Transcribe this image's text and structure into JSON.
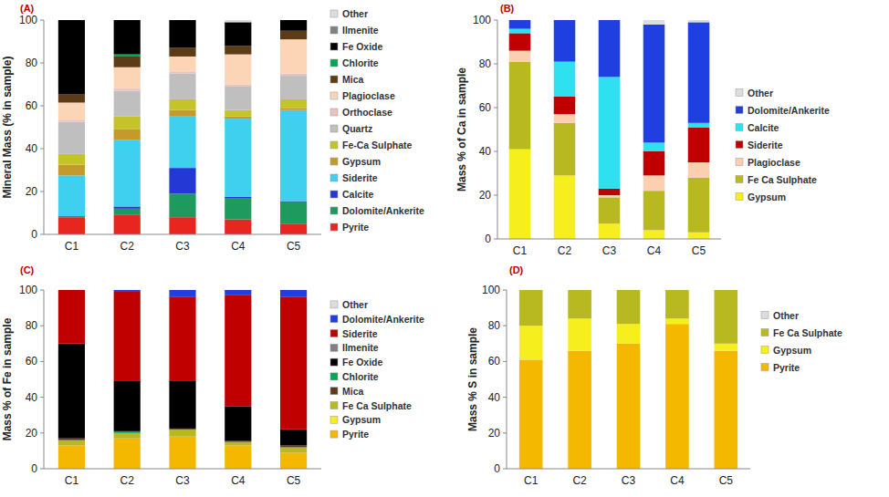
{
  "chart_data": [
    {
      "type": "bar",
      "title": "(A)",
      "y_label": "Mineral Mass  (% in sample)",
      "stacked": true,
      "grid": false,
      "legend": "right",
      "categories": [
        "C1",
        "C2",
        "C3",
        "C4",
        "C5"
      ],
      "ylim": [
        0,
        100
      ],
      "yticks": [
        0,
        20,
        40,
        60,
        80,
        100
      ],
      "series": [
        {
          "name": "Pyrite",
          "color": "#e8261f",
          "values": [
            8,
            9,
            8,
            7,
            5
          ]
        },
        {
          "name": "Dolomite/Ankerite",
          "color": "#1f9a5e",
          "values": [
            0.5,
            3,
            11,
            10,
            10
          ]
        },
        {
          "name": "Calcite",
          "color": "#2438d6",
          "values": [
            0,
            1,
            12,
            0.5,
            0.5
          ]
        },
        {
          "name": "Siderite",
          "color": "#3fd0f0",
          "values": [
            19,
            31,
            24,
            36.5,
            42.5
          ]
        },
        {
          "name": "Gypsum",
          "color": "#c49a2c",
          "values": [
            5,
            5,
            3,
            1,
            1
          ]
        },
        {
          "name": "Fe-Ca Sulphate",
          "color": "#c4c42a",
          "values": [
            5,
            6,
            5,
            3,
            4
          ]
        },
        {
          "name": "Quartz",
          "color": "#bfbfbf",
          "values": [
            15,
            12,
            12,
            11,
            11
          ]
        },
        {
          "name": "Orthoclase",
          "color": "#e8c2c2",
          "values": [
            1,
            1,
            1,
            1,
            1
          ]
        },
        {
          "name": "Plagioclase",
          "color": "#fbd5b5",
          "values": [
            8,
            10,
            7,
            14,
            16
          ]
        },
        {
          "name": "Mica",
          "color": "#5c3b17",
          "values": [
            4,
            5,
            4,
            4,
            4
          ]
        },
        {
          "name": "Chlorite",
          "color": "#00a651",
          "values": [
            0,
            1,
            0,
            0,
            0
          ]
        },
        {
          "name": "Fe Oxide",
          "color": "#000000",
          "values": [
            34.5,
            16,
            13,
            11,
            5
          ]
        },
        {
          "name": "Ilmenite",
          "color": "#808080",
          "values": [
            0,
            0,
            0,
            0,
            0
          ]
        },
        {
          "name": "Other",
          "color": "#dddddd",
          "values": [
            0,
            0,
            0,
            1,
            0
          ]
        }
      ]
    },
    {
      "type": "bar",
      "title": "(B)",
      "y_label": "Mass % of Ca in sample",
      "stacked": true,
      "grid": false,
      "legend": "right",
      "categories": [
        "C1",
        "C2",
        "C3",
        "C4",
        "C5"
      ],
      "ylim": [
        0,
        100
      ],
      "yticks": [
        0,
        20,
        40,
        60,
        80,
        100
      ],
      "series": [
        {
          "name": "Gypsum",
          "color": "#f7ee1e",
          "values": [
            41,
            29,
            7,
            4,
            3
          ]
        },
        {
          "name": "Fe Ca Sulphate",
          "color": "#b8b820",
          "values": [
            40,
            24,
            12,
            18,
            25
          ]
        },
        {
          "name": "Plagioclase",
          "color": "#fbcfb0",
          "values": [
            5,
            4,
            1,
            7,
            7
          ]
        },
        {
          "name": "Siderite",
          "color": "#c00000",
          "values": [
            8,
            8,
            3,
            11,
            16
          ]
        },
        {
          "name": "Calcite",
          "color": "#2fe0f0",
          "values": [
            2,
            16,
            51,
            4,
            2
          ]
        },
        {
          "name": "Dolomite/Ankerite",
          "color": "#1f3fe0",
          "values": [
            4,
            19,
            26,
            54,
            46
          ]
        },
        {
          "name": "Other",
          "color": "#dddddd",
          "values": [
            0,
            0,
            0,
            2,
            1
          ]
        }
      ]
    },
    {
      "type": "bar",
      "title": "(C)",
      "y_label": "Mass % of Fe in sample",
      "stacked": true,
      "grid": false,
      "legend": "right",
      "categories": [
        "C1",
        "C2",
        "C3",
        "C4",
        "C5"
      ],
      "ylim": [
        0,
        100
      ],
      "yticks": [
        0,
        20,
        40,
        60,
        80,
        100
      ],
      "series": [
        {
          "name": "Pyrite",
          "color": "#f5b800",
          "values": [
            13,
            17,
            18,
            13,
            9
          ]
        },
        {
          "name": "Gypsum",
          "color": "#f7ee1e",
          "values": [
            0,
            0,
            0,
            0,
            0
          ]
        },
        {
          "name": "Fe Ca Sulphate",
          "color": "#b8b820",
          "values": [
            3,
            3,
            4,
            2,
            3
          ]
        },
        {
          "name": "Mica",
          "color": "#5c3b17",
          "values": [
            1,
            0,
            0.5,
            0.5,
            1
          ]
        },
        {
          "name": "Chlorite",
          "color": "#00a651",
          "values": [
            0,
            1,
            0,
            0,
            0
          ]
        },
        {
          "name": "Fe Oxide",
          "color": "#000000",
          "values": [
            53,
            28,
            26.5,
            19.5,
            9
          ]
        },
        {
          "name": "Ilmenite",
          "color": "#808080",
          "values": [
            0,
            0,
            0,
            0,
            0
          ]
        },
        {
          "name": "Siderite",
          "color": "#c00000",
          "values": [
            30,
            50,
            47,
            62,
            74
          ]
        },
        {
          "name": "Dolomite/Ankerite",
          "color": "#1f3fe0",
          "values": [
            0,
            1,
            4,
            3,
            4
          ]
        },
        {
          "name": "Other",
          "color": "#dddddd",
          "values": [
            0,
            0,
            0,
            0,
            0
          ]
        }
      ]
    },
    {
      "type": "bar",
      "title": "(D)",
      "y_label": "Mass % S in sample",
      "stacked": true,
      "grid": false,
      "legend": "right",
      "categories": [
        "C1",
        "C2",
        "C3",
        "C4",
        "C5"
      ],
      "ylim": [
        0,
        100
      ],
      "yticks": [
        0,
        20,
        40,
        60,
        80,
        100
      ],
      "series": [
        {
          "name": "Pyrite",
          "color": "#f5b800",
          "values": [
            61,
            66,
            70,
            81,
            66
          ]
        },
        {
          "name": "Gypsum",
          "color": "#f7ee1e",
          "values": [
            19,
            18,
            11,
            3,
            4
          ]
        },
        {
          "name": "Fe Ca Sulphate",
          "color": "#b8b820",
          "values": [
            20,
            16,
            19,
            16,
            30
          ]
        },
        {
          "name": "Other",
          "color": "#dddddd",
          "values": [
            0,
            0,
            0,
            0,
            0
          ]
        }
      ]
    }
  ]
}
